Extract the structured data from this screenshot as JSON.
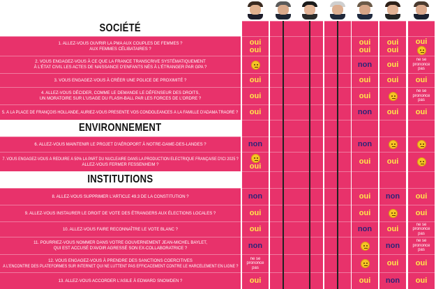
{
  "sections": [
    {
      "title": "SOCIÉTÉ"
    },
    {
      "title": "ENVIRONNEMENT"
    },
    {
      "title": "INSTITUTIONS"
    }
  ],
  "candidates": [
    {
      "icon": "candidate-portrait-1"
    },
    {
      "icon": "candidate-portrait-2"
    },
    {
      "icon": "candidate-portrait-3"
    },
    {
      "icon": "candidate-portrait-4"
    },
    {
      "icon": "candidate-portrait-5"
    },
    {
      "icon": "candidate-portrait-6"
    },
    {
      "icon": "candidate-portrait-7"
    }
  ],
  "labels": {
    "oui": "oui",
    "non": "non",
    "nsp": "ne se prononce pas"
  },
  "questions": [
    {
      "lines": [
        "1. Allez-vous ouvrir la PMA aux couples de femmes ?",
        "aux femmes célibataires ?"
      ],
      "answers": [
        [
          "oui",
          "oui"
        ],
        [],
        [],
        [],
        [
          "oui",
          "oui"
        ],
        [
          "oui",
          "oui"
        ],
        [
          "oui",
          "emoji"
        ]
      ]
    },
    {
      "lines": [
        "2. Vous engagez-vous à ce que la France transcrive systématiquement",
        "à l'état civil les actes de naissance d'enfants nés à l'étranger par GPA ?"
      ],
      "answers": [
        [
          "emoji"
        ],
        [],
        [],
        [],
        [
          "non"
        ],
        [
          "oui"
        ],
        [
          "nsp"
        ]
      ]
    },
    {
      "lines": [
        "3. Vous engagez-vous à créer une police de proximité ?"
      ],
      "answers": [
        [
          "oui"
        ],
        [],
        [],
        [],
        [
          "oui"
        ],
        [
          "oui"
        ],
        [
          "oui"
        ]
      ]
    },
    {
      "lines": [
        "4. Allez-vous décider, comme le demande le défenseur des droits,",
        "un moratoire sur l'usage du flash-ball par les forces de l'ordre ?"
      ],
      "answers": [
        [
          "oui"
        ],
        [],
        [],
        [],
        [
          "oui"
        ],
        [
          "emoji"
        ],
        [
          "nsp"
        ]
      ]
    },
    {
      "lines": [
        "5. À la place de François Hollande, auriez-vous présenté vos condoléances à la famille d'Adama Traoré ?"
      ],
      "answers": [
        [
          "oui"
        ],
        [],
        [],
        [],
        [
          "non"
        ],
        [
          "oui"
        ],
        [
          "oui"
        ]
      ]
    },
    {
      "lines": [
        "6. Allez-vous maintenir le projet d'aéroport à Notre-Dame-des-Landes ?"
      ],
      "answers": [
        [
          "non"
        ],
        [],
        [],
        [],
        [
          "non"
        ],
        [
          "emoji"
        ],
        [
          "emoji"
        ]
      ]
    },
    {
      "lines": [
        "7. Vous engagez-vous à réduire à 50% la part du nucléaire dans la production électrique française d'ici 2025 ?",
        "Allez-vous fermer Fessenheim ?"
      ],
      "answers": [
        [
          "emoji",
          "oui"
        ],
        [],
        [],
        [],
        [
          "oui"
        ],
        [
          "oui"
        ],
        [
          "emoji"
        ]
      ]
    },
    {
      "lines": [
        "8. Allez-vous supprimer l'article 49.3 de la Constitution ?"
      ],
      "answers": [
        [
          "non"
        ],
        [],
        [],
        [],
        [
          "oui"
        ],
        [
          "non"
        ],
        [
          "oui"
        ]
      ]
    },
    {
      "lines": [
        "9. Allez-vous instaurer le droit de vote des étrangers aux élections locales ?"
      ],
      "answers": [
        [
          "oui"
        ],
        [],
        [],
        [],
        [
          "oui"
        ],
        [
          "emoji"
        ],
        [
          "oui"
        ]
      ]
    },
    {
      "lines": [
        "10. Allez-vous faire reconnaître le vote blanc ?"
      ],
      "answers": [
        [
          "oui"
        ],
        [],
        [],
        [],
        [
          "non"
        ],
        [
          "oui"
        ],
        [
          "nsp"
        ]
      ]
    },
    {
      "lines": [
        "11. Pourriez-vous nommer dans votre gouvernement Jean-Michel Baylet,",
        "qui est accusé d'avoir agressé son ex-collaboratrice ?"
      ],
      "answers": [
        [
          "non"
        ],
        [],
        [],
        [],
        [
          "emoji"
        ],
        [
          "non"
        ],
        [
          "nsp"
        ]
      ]
    },
    {
      "lines": [
        "12. Vous engagez-vous à prendre des sanctions coercitives",
        "à l'encontre des plateformes sur internet qui ne luttent pas efficacement contre le harcèlement en ligne ?"
      ],
      "answers": [
        [
          "nsp"
        ],
        [],
        [],
        [],
        [
          "emoji"
        ],
        [
          "oui"
        ],
        [
          "oui"
        ]
      ]
    },
    {
      "lines": [
        "13. Allez-vous accorder l'asile à Edward Snowden ?"
      ],
      "answers": [
        [
          "oui"
        ],
        [],
        [],
        [],
        [
          "oui"
        ],
        [
          "non"
        ],
        [
          "oui"
        ]
      ]
    }
  ],
  "colors": {
    "background": "#e8326b",
    "oui": "#ffe94a",
    "non": "#2a2478",
    "divider": "#222222"
  }
}
